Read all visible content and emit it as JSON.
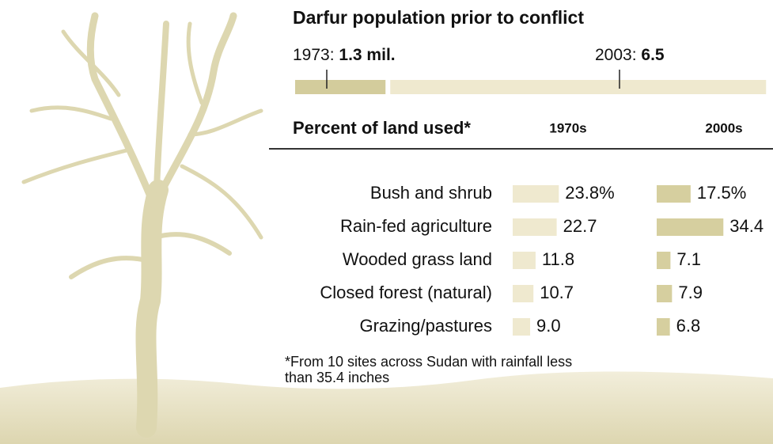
{
  "chart_data": [
    {
      "type": "bar",
      "title": "Darfur population prior to conflict",
      "categories": [
        "1973:",
        "2003:"
      ],
      "values": [
        1.3,
        6.5
      ],
      "value_labels": [
        "1.3 mil.",
        "6.5"
      ],
      "colors": [
        "#d3cc9c",
        "#efe9cf"
      ]
    },
    {
      "type": "bar",
      "title": "Percent of land used*",
      "categories": [
        "Bush and shrub",
        "Rain-fed agriculture",
        "Wooded grass land",
        "Closed forest (natural)",
        "Grazing/pastures"
      ],
      "series": [
        {
          "name": "1970s",
          "color": "#efe9cf",
          "values": [
            23.8,
            22.7,
            11.8,
            10.7,
            9.0
          ],
          "value_labels": [
            "23.8%",
            "22.7",
            "11.8",
            "10.7",
            "9.0"
          ]
        },
        {
          "name": "2000s",
          "color": "#d6cf9f",
          "values": [
            17.5,
            34.4,
            7.1,
            7.9,
            6.8
          ],
          "value_labels": [
            "17.5%",
            "34.4",
            "7.1",
            "7.9",
            "6.8"
          ]
        }
      ],
      "note": [
        "*From 10 sites across Sudan with rainfall less",
        "than 35.4 inches"
      ]
    }
  ]
}
